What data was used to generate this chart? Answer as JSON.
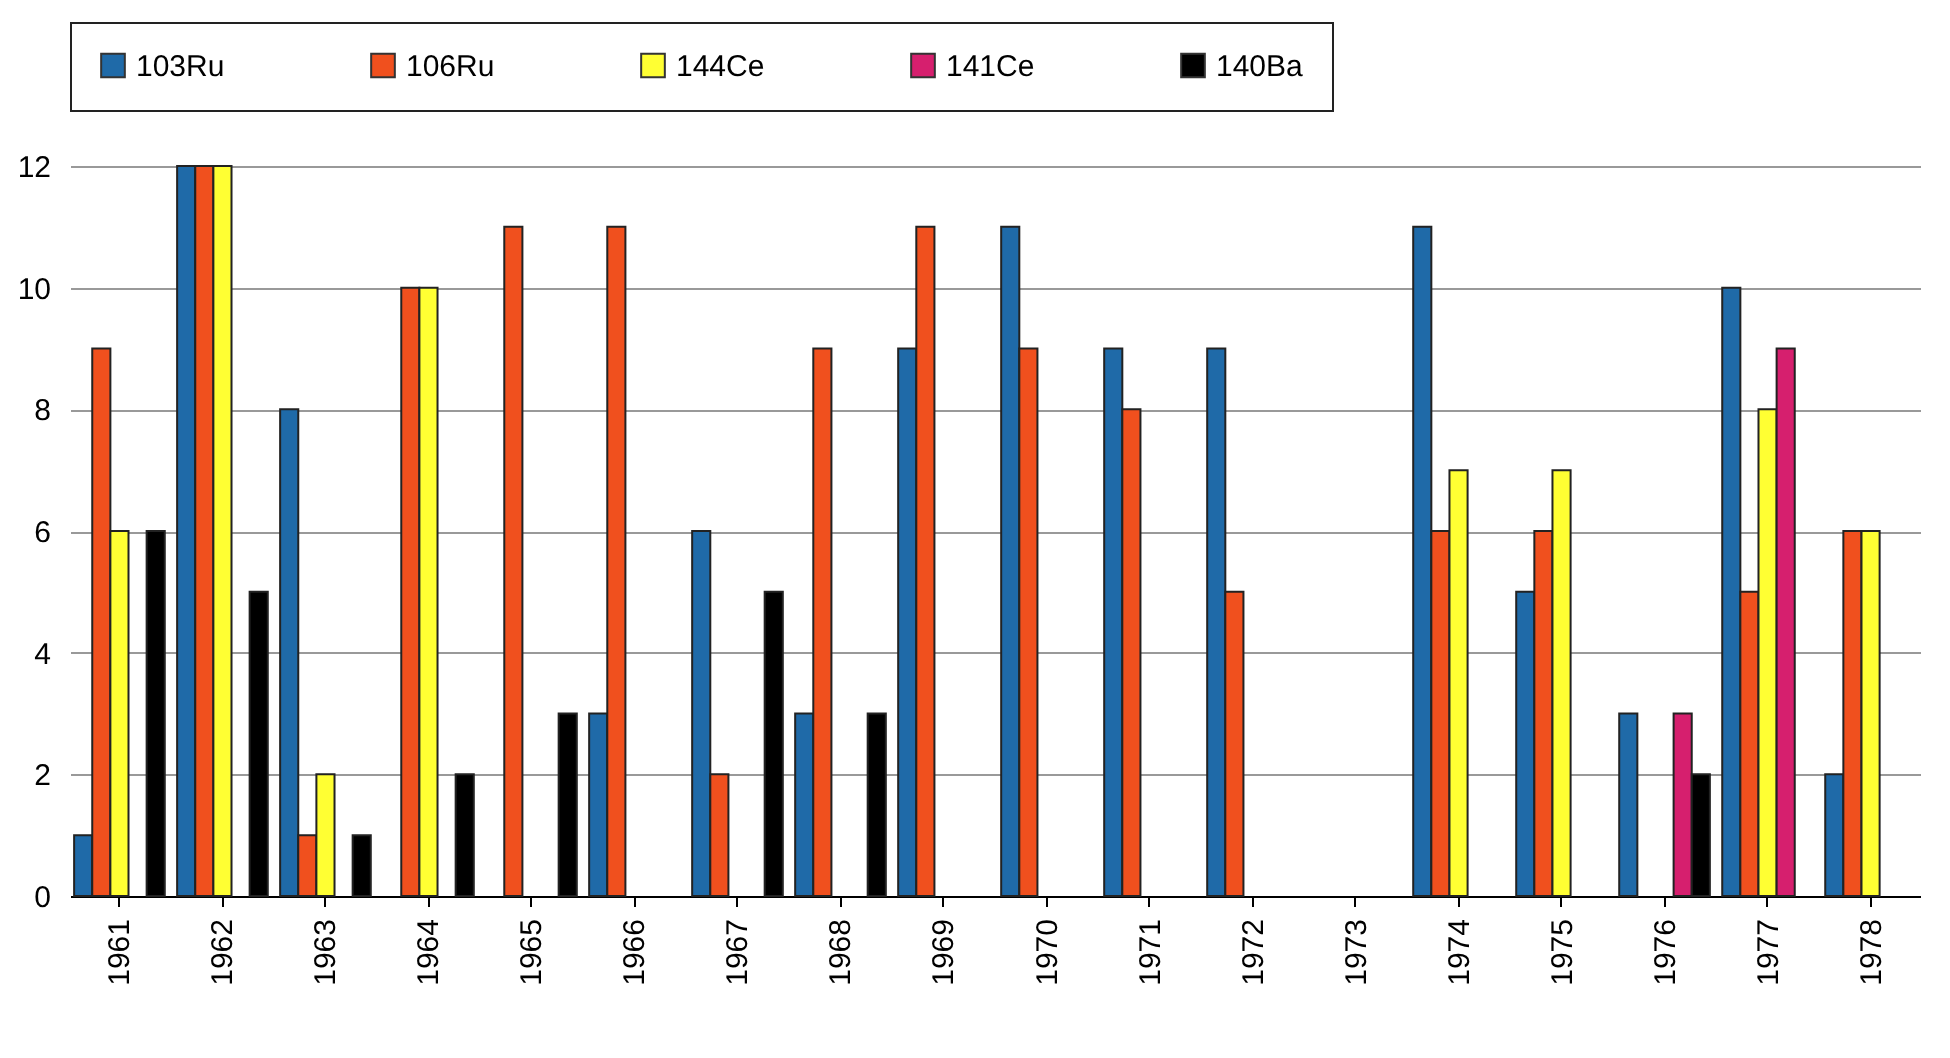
{
  "chart_data": {
    "type": "bar",
    "categories": [
      "1961",
      "1962",
      "1963",
      "1964",
      "1965",
      "1966",
      "1967",
      "1968",
      "1969",
      "1970",
      "1971",
      "1972",
      "1973",
      "1974",
      "1975",
      "1976",
      "1977",
      "1978"
    ],
    "series": [
      {
        "name": "103Ru",
        "color": "#1f6aa8",
        "values": [
          1,
          12,
          8,
          null,
          null,
          3,
          6,
          3,
          9,
          11,
          9,
          9,
          null,
          11,
          5,
          3,
          10,
          2
        ]
      },
      {
        "name": "106Ru",
        "color": "#f0501e",
        "values": [
          9,
          12,
          1,
          10,
          11,
          11,
          2,
          9,
          11,
          9,
          8,
          5,
          null,
          6,
          6,
          null,
          5,
          6
        ]
      },
      {
        "name": "144Ce",
        "color": "#ffff33",
        "values": [
          6,
          12,
          2,
          10,
          null,
          null,
          null,
          null,
          null,
          null,
          null,
          null,
          null,
          7,
          7,
          null,
          8,
          6
        ]
      },
      {
        "name": "141Ce",
        "color": "#d61f6e",
        "values": [
          null,
          null,
          null,
          null,
          null,
          null,
          null,
          null,
          null,
          null,
          null,
          null,
          null,
          null,
          null,
          3,
          9,
          null
        ]
      },
      {
        "name": "140Ba",
        "color": "#000000",
        "values": [
          6,
          5,
          1,
          2,
          3,
          null,
          5,
          3,
          null,
          null,
          null,
          null,
          null,
          null,
          null,
          2,
          null,
          null
        ]
      }
    ],
    "ylim": [
      0,
      12
    ],
    "yticks": [
      0,
      2,
      4,
      6,
      8,
      10,
      12
    ],
    "grid": "y",
    "legend": "top"
  }
}
